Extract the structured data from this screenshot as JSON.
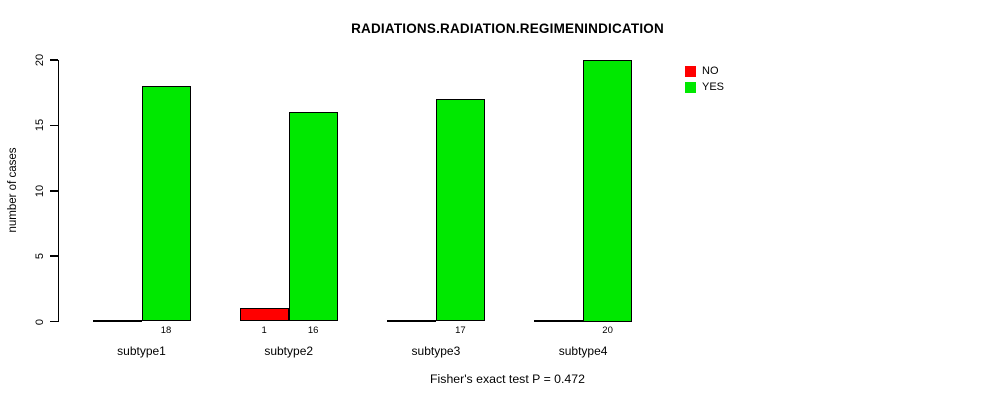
{
  "chart_data": {
    "type": "bar",
    "title": "RADIATIONS.RADIATION.REGIMENINDICATION",
    "ylabel": "number of cases",
    "xlabel": "",
    "categories": [
      "subtype1",
      "subtype2",
      "subtype3",
      "subtype4"
    ],
    "series": [
      {
        "name": "NO",
        "color": "#ff0000",
        "values": [
          0,
          1,
          0,
          0
        ]
      },
      {
        "name": "YES",
        "color": "#00e800",
        "values": [
          18,
          16,
          17,
          20
        ]
      }
    ],
    "bar_count_labels": {
      "NO": [
        "",
        "1",
        "",
        ""
      ],
      "YES": [
        "18",
        "16",
        "17",
        "20"
      ]
    },
    "ylim": [
      0,
      20
    ],
    "yticks": [
      "0",
      "5",
      "10",
      "15",
      "20"
    ],
    "grid": false,
    "legend_position": "top-right",
    "annotation": "Fisher's exact test P = 0.472",
    "colors": {
      "background": "#ffffff",
      "axis": "#000000",
      "text": "#000000",
      "no": "#ff0000",
      "yes": "#00e800"
    }
  }
}
